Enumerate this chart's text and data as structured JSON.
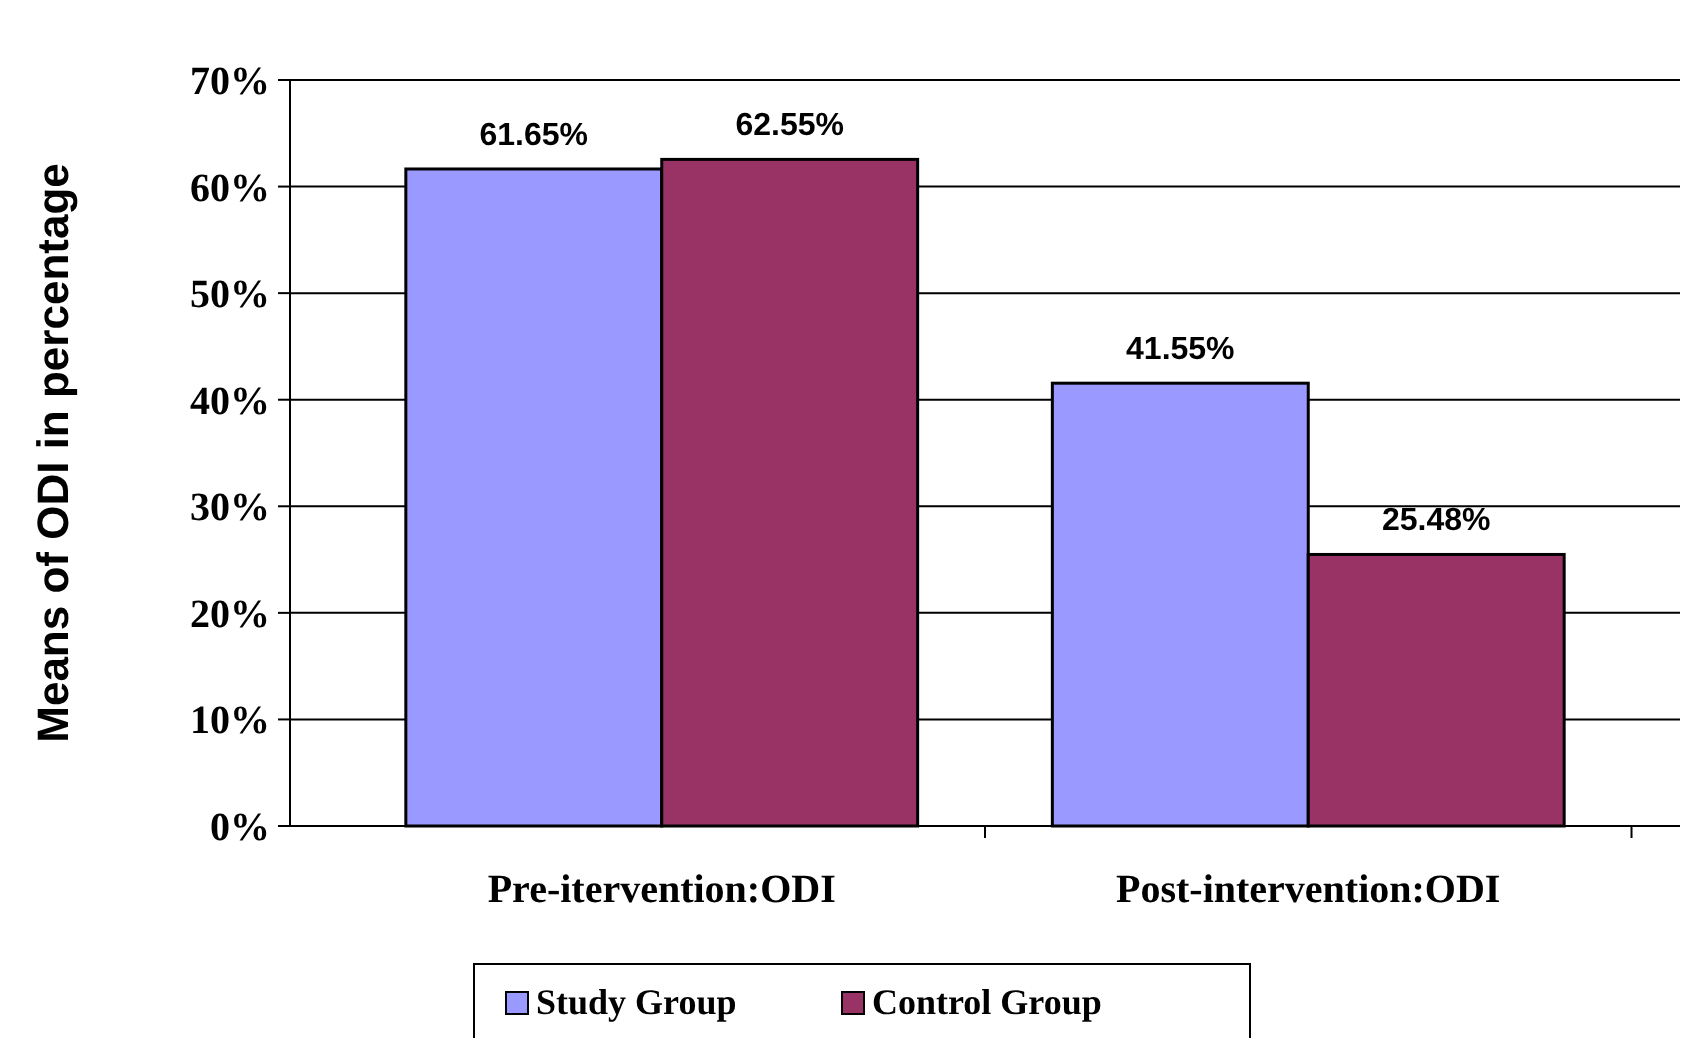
{
  "chart_data": {
    "type": "bar",
    "ylabel": "Means of ODI in percentage",
    "categories": [
      "Pre-itervention:ODI",
      "Post-intervention:ODI"
    ],
    "series": [
      {
        "name": "Study Group",
        "color": "#9999ff",
        "values": [
          61.65,
          41.55
        ],
        "value_labels": [
          "61.65%",
          "41.55%"
        ]
      },
      {
        "name": "Control Group",
        "color": "#993366",
        "values": [
          62.55,
          25.48
        ],
        "value_labels": [
          "62.55%",
          "25.48%"
        ]
      }
    ],
    "ylim": [
      0,
      70
    ],
    "yticks": [
      {
        "value": 0,
        "label": "0%"
      },
      {
        "value": 10,
        "label": "10%"
      },
      {
        "value": 20,
        "label": "20%"
      },
      {
        "value": 30,
        "label": "30%"
      },
      {
        "value": 40,
        "label": "40%"
      },
      {
        "value": 50,
        "label": "50%"
      },
      {
        "value": 60,
        "label": "60%"
      },
      {
        "value": 70,
        "label": "70%"
      }
    ],
    "grid": "y",
    "legend": "bottom"
  }
}
